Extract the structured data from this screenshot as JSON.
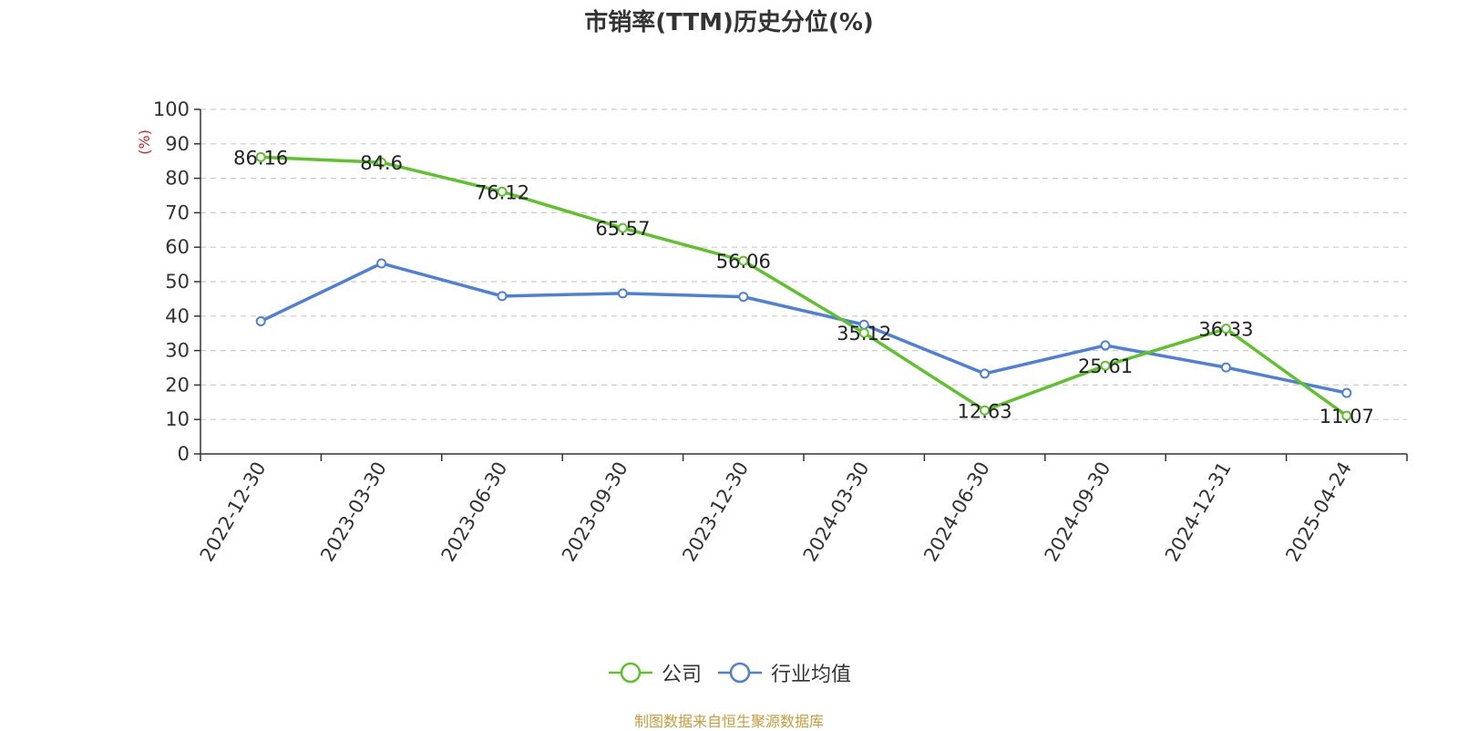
{
  "title": "市销率(TTM)历史分位(%)",
  "source": "制图数据来自恒生聚源数据库",
  "chart_data": {
    "type": "line",
    "title": "市销率(TTM)历史分位(%)",
    "ylabel": "(%)",
    "xlabel": "",
    "ylim": [
      0,
      100
    ],
    "yticks": [
      0,
      10,
      20,
      30,
      40,
      50,
      60,
      70,
      80,
      90,
      100
    ],
    "grid": true,
    "legend_position": "bottom",
    "categories": [
      "2022-12-30",
      "2023-03-30",
      "2023-06-30",
      "2023-09-30",
      "2023-12-30",
      "2024-03-30",
      "2024-06-30",
      "2024-09-30",
      "2024-12-31",
      "2025-04-24"
    ],
    "series": [
      {
        "name": "公司",
        "color": "#5ec22b",
        "show_labels": true,
        "values": [
          86.16,
          84.6,
          76.12,
          65.57,
          56.06,
          35.12,
          12.63,
          25.61,
          36.33,
          11.07
        ]
      },
      {
        "name": "行业均值",
        "color": "#4e7fdb",
        "show_labels": false,
        "values": [
          38.5,
          55.3,
          45.8,
          46.6,
          45.6,
          37.5,
          23.3,
          31.5,
          25.1,
          17.7
        ]
      }
    ]
  }
}
